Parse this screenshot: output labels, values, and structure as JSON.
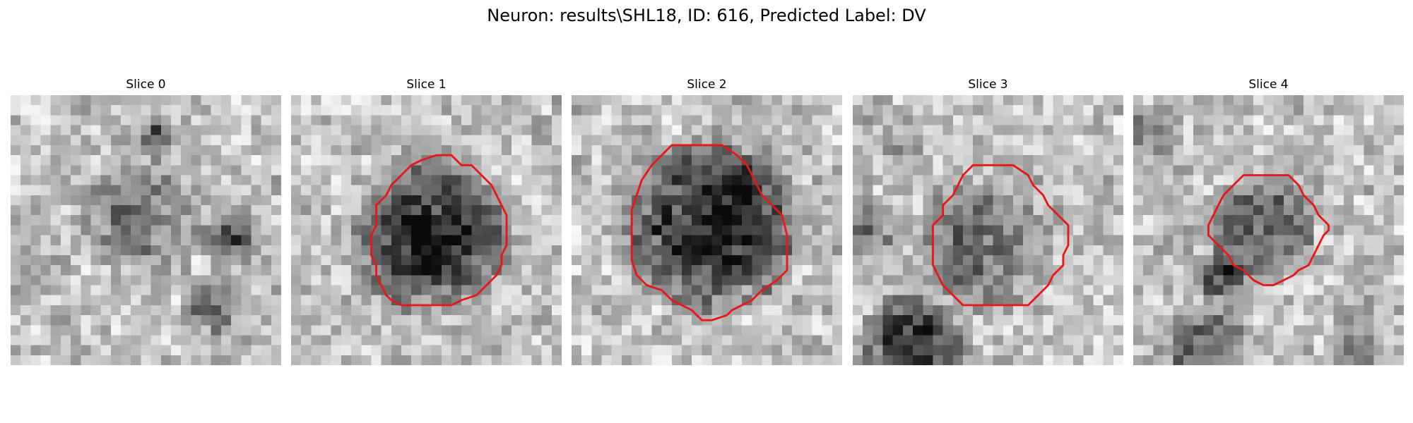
{
  "figure": {
    "title": "Neuron: results\\SHL18, ID: 616, Predicted Label: DV"
  },
  "panels": [
    {
      "title": "Slice 0",
      "has_contour": false
    },
    {
      "title": "Slice 1",
      "has_contour": true
    },
    {
      "title": "Slice 2",
      "has_contour": true
    },
    {
      "title": "Slice 3",
      "has_contour": true
    },
    {
      "title": "Slice 4",
      "has_contour": true
    }
  ],
  "style": {
    "colormap": "grayscale",
    "contour_color": "#e8161a"
  }
}
